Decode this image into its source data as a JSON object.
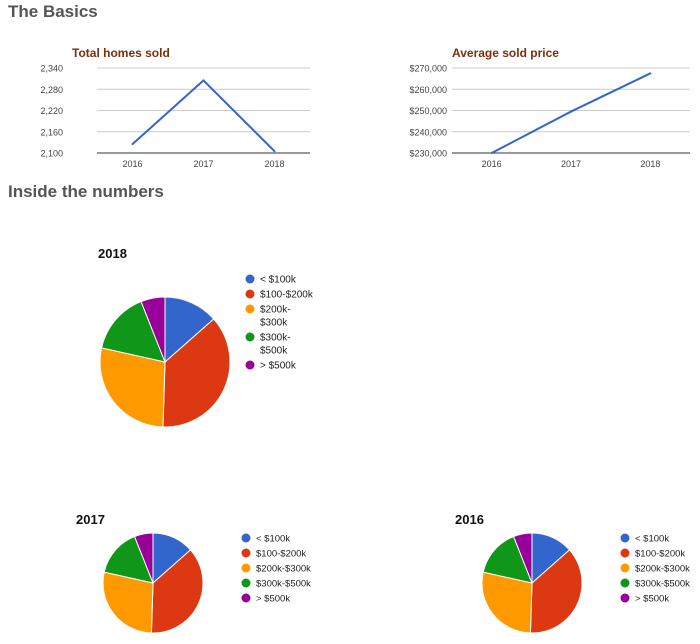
{
  "sections": {
    "basics": "The Basics",
    "inside": "Inside the numbers"
  },
  "chart_data": [
    {
      "type": "line",
      "title": "Total homes sold",
      "x": [
        "2016",
        "2017",
        "2018"
      ],
      "series": [
        {
          "values": [
            2125,
            2305,
            2105
          ]
        }
      ],
      "ylim": [
        2100,
        2340
      ],
      "yticks": [
        "2,100",
        "2,160",
        "2,220",
        "2,280",
        "2,340"
      ],
      "grid": true,
      "color": "#3366cc"
    },
    {
      "type": "line",
      "title": "Average sold price",
      "x": [
        "2016",
        "2017",
        "2018"
      ],
      "series": [
        {
          "values": [
            230000,
            249500,
            267500
          ]
        }
      ],
      "ylim": [
        230000,
        270000
      ],
      "yticks": [
        "$230,000",
        "$240,000",
        "$250,000",
        "$260,000",
        "$270,000"
      ],
      "grid": true,
      "color": "#3366cc"
    },
    {
      "type": "pie",
      "title": "2018",
      "categories": [
        "< $100k",
        "$100-$200k",
        "$200k-$300k",
        "$300k-$500k",
        "> $500k"
      ],
      "legend_lines": [
        [
          "< $100k"
        ],
        [
          "$100-$200k"
        ],
        [
          "$200k-",
          "$300k"
        ],
        [
          "$300k-",
          "$500k"
        ],
        [
          "> $500k"
        ]
      ],
      "values": [
        13.5,
        37,
        28,
        15.5,
        6
      ],
      "colors": [
        "#3366cc",
        "#dc3912",
        "#ff9900",
        "#109618",
        "#990099"
      ],
      "legend": "right"
    },
    {
      "type": "pie",
      "title": "2017",
      "categories": [
        "< $100k",
        "$100-$200k",
        "$200k-$300k",
        "$300k-$500k",
        "> $500k"
      ],
      "legend_lines": [
        [
          "< $100k"
        ],
        [
          "$100-$200k"
        ],
        [
          "$200k-$300k"
        ],
        [
          "$300k-$500k"
        ],
        [
          "> $500k"
        ]
      ],
      "values": [
        13.5,
        37,
        28,
        15.5,
        6
      ],
      "colors": [
        "#3366cc",
        "#dc3912",
        "#ff9900",
        "#109618",
        "#990099"
      ],
      "legend": "right"
    },
    {
      "type": "pie",
      "title": "2016",
      "categories": [
        "< $100k",
        "$100-$200k",
        "$200k-$300k",
        "$300k-$500k",
        "> $500k"
      ],
      "legend_lines": [
        [
          "< $100k"
        ],
        [
          "$100-$200k"
        ],
        [
          "$200k-$300k"
        ],
        [
          "$300k-$500k"
        ],
        [
          "> $500k"
        ]
      ],
      "values": [
        13.5,
        37,
        28,
        15.5,
        6
      ],
      "colors": [
        "#3366cc",
        "#dc3912",
        "#ff9900",
        "#109618",
        "#990099"
      ],
      "legend": "right"
    }
  ]
}
